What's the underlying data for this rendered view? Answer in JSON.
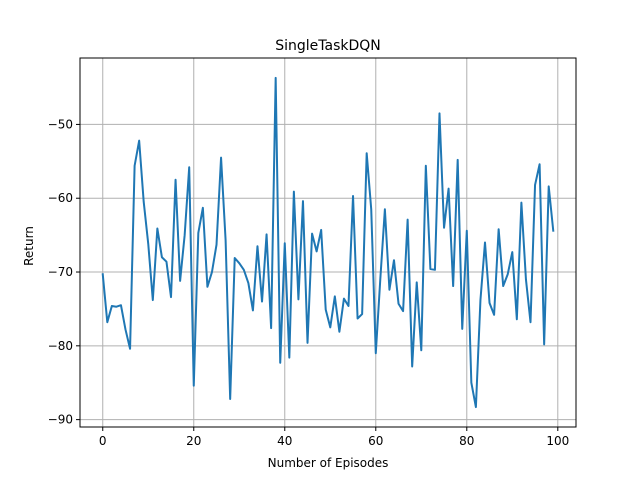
{
  "chart_data": {
    "type": "line",
    "title": "SingleTaskDQN",
    "xlabel": "Number of Episodes",
    "ylabel": "Return",
    "xlim": [
      -5,
      104
    ],
    "ylim": [
      -91,
      -41
    ],
    "xticks": [
      0,
      20,
      40,
      60,
      80,
      100
    ],
    "yticks": [
      -90,
      -80,
      -70,
      -60,
      -50
    ],
    "grid": true,
    "legend": false,
    "colors": {
      "line": "#1f77b4",
      "grid": "#b0b0b0",
      "axes": "#000000"
    },
    "series": [
      {
        "x": [
          0,
          1,
          2,
          3,
          4,
          5,
          6,
          7,
          8,
          9,
          10,
          11,
          12,
          13,
          14,
          15,
          16,
          17,
          18,
          19,
          20,
          21,
          22,
          23,
          24,
          25,
          26,
          27,
          28,
          29,
          30,
          31,
          32,
          33,
          34,
          35,
          36,
          37,
          38,
          39,
          40,
          41,
          42,
          43,
          44,
          45,
          46,
          47,
          48,
          49,
          50,
          51,
          52,
          53,
          54,
          55,
          56,
          57,
          58,
          59,
          60,
          61,
          62,
          63,
          64,
          65,
          66,
          67,
          68,
          69,
          70,
          71,
          72,
          73,
          74,
          75,
          76,
          77,
          78,
          79,
          80,
          81,
          82,
          83,
          84,
          85,
          86,
          87,
          88,
          89,
          90,
          91,
          92,
          93,
          94,
          95,
          96,
          97,
          98,
          99
        ],
        "values": [
          -70.3,
          -76.8,
          -74.6,
          -74.7,
          -74.5,
          -77.8,
          -80.4,
          -55.6,
          -52.2,
          -60.5,
          -66.2,
          -73.8,
          -64.1,
          -68.0,
          -68.6,
          -73.4,
          -57.5,
          -71.2,
          -65.0,
          -55.8,
          -85.4,
          -64.7,
          -61.3,
          -72.0,
          -70.0,
          -66.3,
          -54.5,
          -65.7,
          -87.2,
          -68.1,
          -68.8,
          -69.7,
          -71.5,
          -75.2,
          -66.5,
          -74.0,
          -64.9,
          -77.6,
          -43.7,
          -82.3,
          -66.1,
          -81.6,
          -59.1,
          -73.7,
          -60.4,
          -79.6,
          -64.8,
          -67.2,
          -64.3,
          -75.1,
          -77.5,
          -73.3,
          -78.1,
          -73.6,
          -74.6,
          -59.7,
          -76.3,
          -75.7,
          -53.9,
          -61.5,
          -81.0,
          -70.9,
          -61.5,
          -72.4,
          -68.4,
          -74.3,
          -75.3,
          -62.9,
          -82.8,
          -71.4,
          -80.6,
          -55.6,
          -69.6,
          -69.7,
          -48.5,
          -64.0,
          -58.7,
          -71.9,
          -54.8,
          -77.7,
          -64.4,
          -85.0,
          -88.3,
          -73.8,
          -66.0,
          -74.2,
          -75.8,
          -64.2,
          -71.9,
          -70.3,
          -67.3,
          -76.4,
          -60.6,
          -71.0,
          -76.8,
          -58.2,
          -55.4,
          -79.8,
          -58.4,
          -64.4
        ]
      }
    ]
  }
}
